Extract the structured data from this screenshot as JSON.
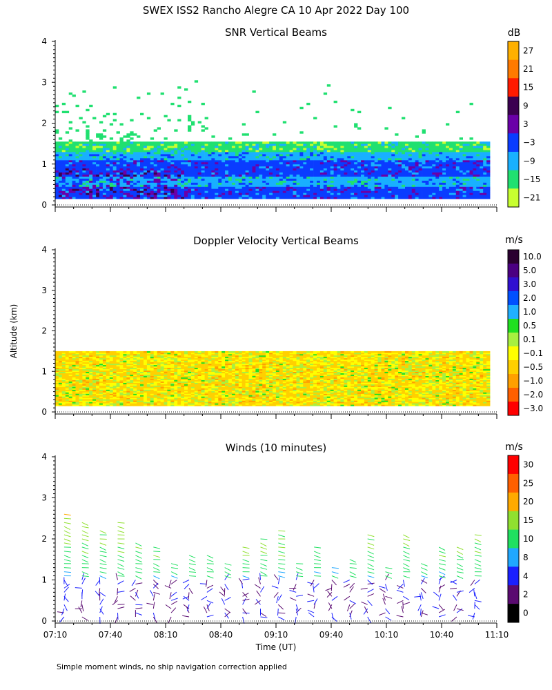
{
  "figure_title": "SWEX ISS2 Rancho Alegre CA  10 Apr 2022 Day 100",
  "footnote": "Simple moment winds, no ship navigation correction applied",
  "shared": {
    "ylabel": "Altitude (km)",
    "xlabel": "Time (UT)",
    "x_tick_labels": [
      "07:10",
      "07:40",
      "08:10",
      "08:40",
      "09:10",
      "09:40",
      "10:10",
      "10:40",
      "11:10"
    ]
  },
  "chart_data": [
    {
      "type": "heatmap",
      "title": "SNR Vertical Beams",
      "xlabel": "Time (UT)",
      "ylabel": "Altitude (km)",
      "xlim": [
        "07:10",
        "11:10"
      ],
      "ylim": [
        0,
        4
      ],
      "yticks": [
        0,
        1,
        2,
        3,
        4
      ],
      "colorbar": {
        "unit": "dB",
        "labels": [
          "27",
          "21",
          "15",
          "9",
          "3",
          "−3",
          "−9",
          "−15",
          "−21"
        ],
        "levels": [
          30,
          24,
          18,
          12,
          6,
          0,
          -6,
          -12,
          -18,
          -24
        ],
        "colors": [
          "#ffb000",
          "#ff7a00",
          "#ff1a00",
          "#3b0050",
          "#6a00a8",
          "#0a3cff",
          "#19b0ff",
          "#20e070",
          "#c8ff30"
        ]
      },
      "data_extent_km": {
        "echo_top_approx": 1.5,
        "lowest_gate": 0.15
      },
      "layers": [
        {
          "alt_km": [
            1.25,
            1.5
          ],
          "snr_db": -15
        },
        {
          "alt_km": [
            1.05,
            1.25
          ],
          "snr_db": -9
        },
        {
          "alt_km": [
            0.7,
            1.05
          ],
          "snr_db": -3
        },
        {
          "alt_km": [
            0.45,
            0.7
          ],
          "snr_db": -9
        },
        {
          "alt_km": [
            0.15,
            0.45
          ],
          "snr_db": -3
        }
      ]
    },
    {
      "type": "heatmap",
      "title": "Doppler Velocity Vertical Beams",
      "xlabel": "Time (UT)",
      "ylabel": "Altitude (km)",
      "xlim": [
        "07:10",
        "11:10"
      ],
      "ylim": [
        0,
        4
      ],
      "yticks": [
        0,
        1,
        2,
        3,
        4
      ],
      "colorbar": {
        "unit": "m/s",
        "labels": [
          "10.0",
          "5.0",
          "3.0",
          "2.0",
          "1.0",
          "0.5",
          "0.1",
          "−0.1",
          "−0.5",
          "−1.0",
          "−2.0",
          "−3.0"
        ],
        "colors": [
          "#2a0030",
          "#4b0082",
          "#3010d0",
          "#0050ff",
          "#20b0ff",
          "#20e020",
          "#a8f040",
          "#ffff00",
          "#ffd000",
          "#ffa000",
          "#ff6000",
          "#ff0000"
        ]
      },
      "data_extent_km": {
        "echo_top_approx": 1.5,
        "lowest_gate": 0.15
      },
      "dominant_velocity_ms": [
        -0.5,
        0.1
      ]
    },
    {
      "type": "barbs",
      "title": "Winds (10 minutes)",
      "xlabel": "Time (UT)",
      "ylabel": "Altitude (km)",
      "xlim": [
        "07:10",
        "11:10"
      ],
      "ylim": [
        0,
        4
      ],
      "yticks": [
        0,
        1,
        2,
        3,
        4
      ],
      "colorbar": {
        "unit": "m/s",
        "labels": [
          "30",
          "25",
          "20",
          "15",
          "10",
          "8",
          "4",
          "2",
          "0"
        ],
        "colors": [
          "#ff0000",
          "#ff6000",
          "#ffaa00",
          "#90e030",
          "#20e060",
          "#20a8ff",
          "#1a20ff",
          "#5a0a70",
          "#000000"
        ]
      },
      "profile_interval_min": 10,
      "profile_start": "07:10",
      "profile_count": 24
    }
  ]
}
